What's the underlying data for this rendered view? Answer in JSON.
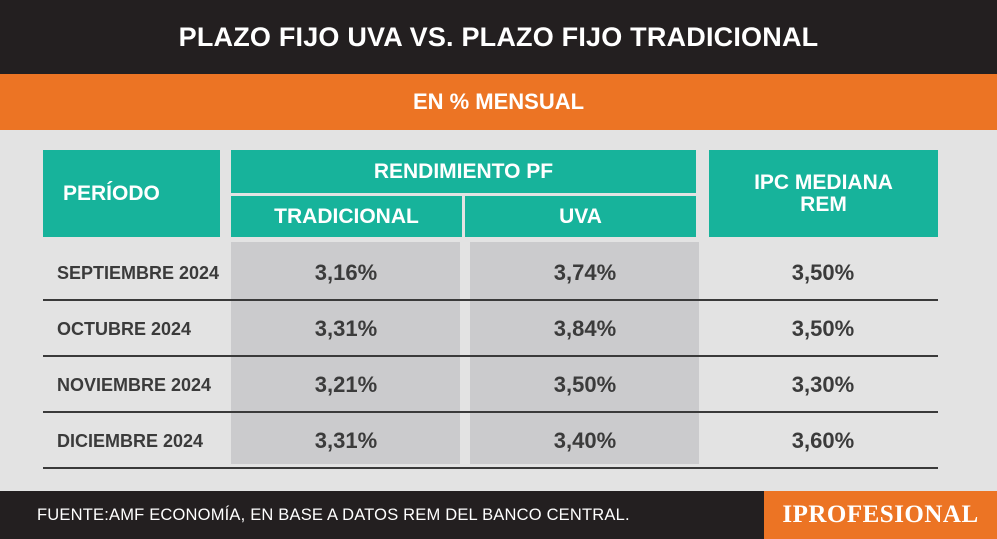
{
  "title": "PLAZO FIJO UVA VS. PLAZO FIJO TRADICIONAL",
  "subtitle": "EN % MENSUAL",
  "headers": {
    "periodo": "PERÍODO",
    "rendimiento": "RENDIMIENTO PF",
    "tradicional": "TRADICIONAL",
    "uva": "UVA",
    "ipc_line1": "IPC MEDIANA",
    "ipc_line2": "REM"
  },
  "footer": {
    "source": "FUENTE:AMF ECONOMÍA, EN BASE A DATOS REM DEL BANCO CENTRAL.",
    "brand": "IPROFESIONAL"
  },
  "colors": {
    "title_bg": "#231f20",
    "accent_orange": "#ec7424",
    "header_teal": "#17b39b",
    "background": "#e3e3e3"
  },
  "chart_data": {
    "type": "table",
    "title": "PLAZO FIJO UVA VS. PLAZO FIJO TRADICIONAL",
    "subtitle": "EN % MENSUAL",
    "columns": [
      "PERÍODO",
      "TRADICIONAL",
      "UVA",
      "IPC MEDIANA REM"
    ],
    "rows": [
      [
        "SEPTIEMBRE 2024",
        "3,16%",
        "3,74%",
        "3,50%"
      ],
      [
        "OCTUBRE 2024",
        "3,31%",
        "3,84%",
        "3,50%"
      ],
      [
        "NOVIEMBRE 2024",
        "3,21%",
        "3,50%",
        "3,30%"
      ],
      [
        "DICIEMBRE 2024",
        "3,31%",
        "3,40%",
        "3,60%"
      ]
    ]
  }
}
